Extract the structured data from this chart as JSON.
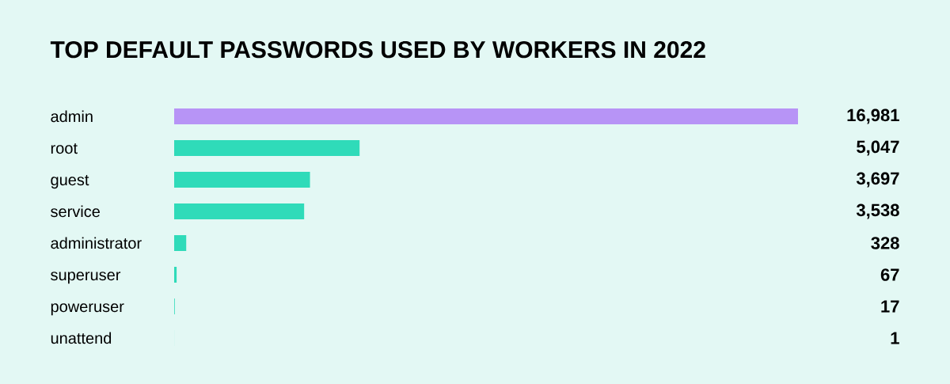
{
  "chart_data": {
    "type": "bar",
    "orientation": "horizontal",
    "title": "TOP DEFAULT PASSWORDS USED BY WORKERS IN 2022",
    "categories": [
      "admin",
      "root",
      "guest",
      "service",
      "administrator",
      "superuser",
      "poweruser",
      "unattend"
    ],
    "values": [
      16981,
      5047,
      3697,
      3538,
      328,
      67,
      17,
      1
    ],
    "value_labels": [
      "16,981",
      "5,047",
      "3,697",
      "3,538",
      "328",
      "67",
      "17",
      "1"
    ],
    "colors": [
      "#b794f6",
      "#2fdbb9",
      "#2fdbb9",
      "#2fdbb9",
      "#2fdbb9",
      "#2fdbb9",
      "#2fdbb9",
      "#2fdbb9"
    ]
  }
}
